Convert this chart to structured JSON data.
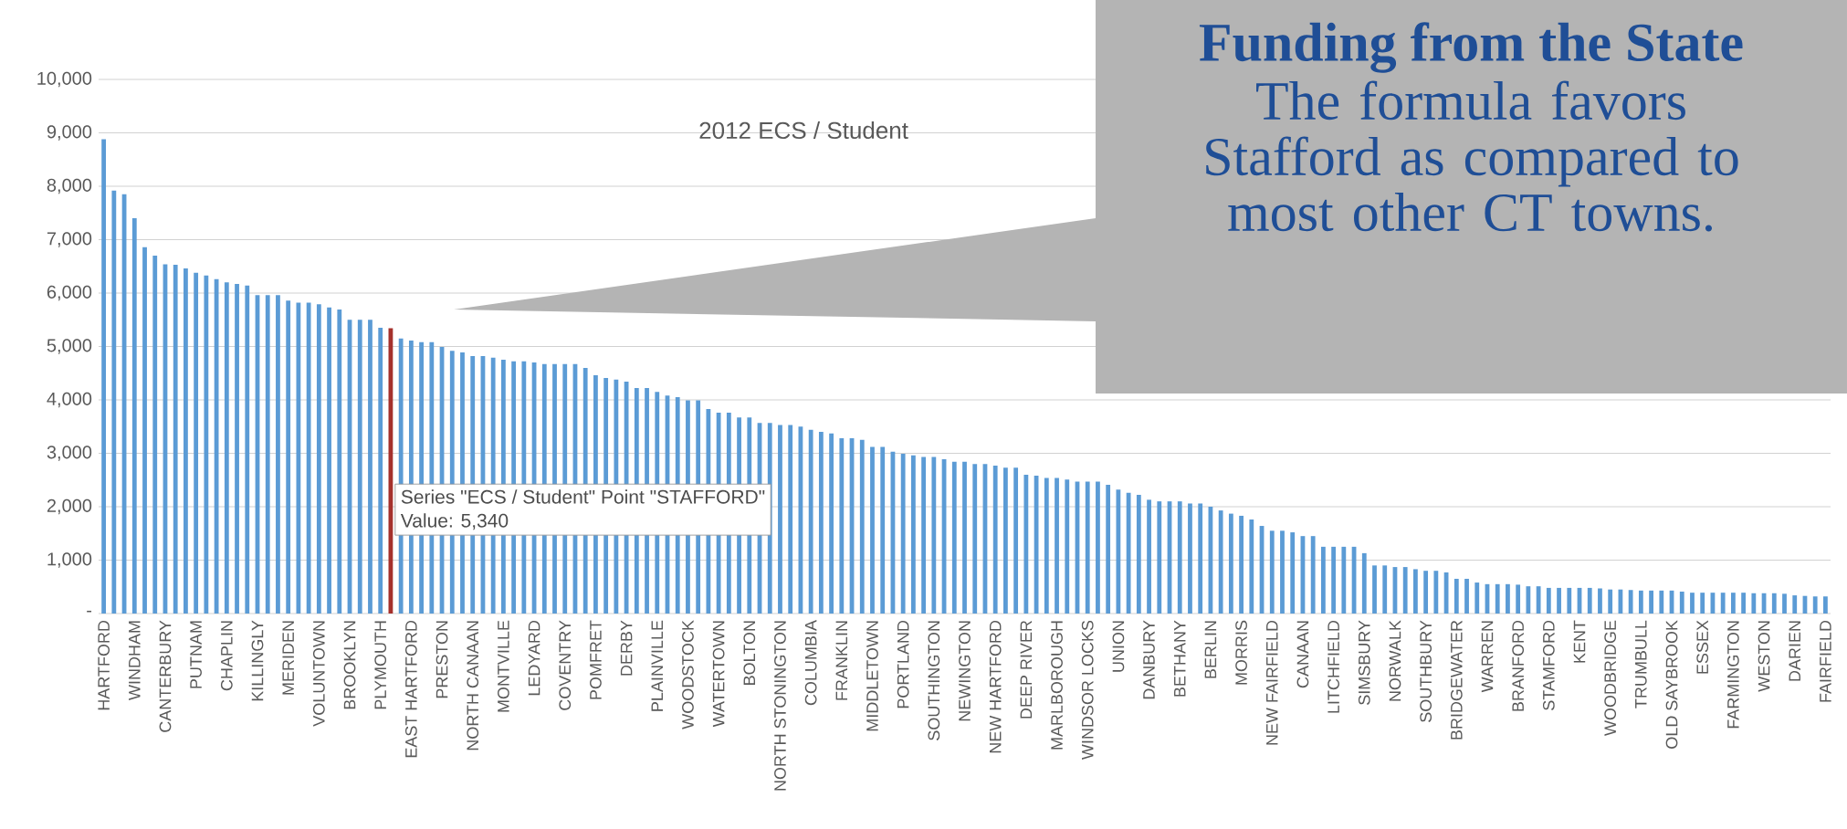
{
  "chart_data": {
    "type": "bar",
    "title": "2012 ECS / Student",
    "categories": [
      "HARTFORD",
      null,
      null,
      "WINDHAM",
      null,
      null,
      "CANTERBURY",
      null,
      null,
      "PUTNAM",
      null,
      null,
      "CHAPLIN",
      null,
      null,
      "KILLINGLY",
      null,
      null,
      "MERIDEN",
      null,
      null,
      "VOLUNTOWN",
      null,
      null,
      "BROOKLYN",
      null,
      null,
      "PLYMOUTH",
      null,
      null,
      "EAST HARTFORD",
      null,
      null,
      "PRESTON",
      null,
      null,
      "NORTH CANAAN",
      null,
      null,
      "MONTVILLE",
      null,
      null,
      "LEDYARD",
      null,
      null,
      "COVENTRY",
      null,
      null,
      "POMFRET",
      null,
      null,
      "DERBY",
      null,
      null,
      "PLAINVILLE",
      null,
      null,
      "WOODSTOCK",
      null,
      null,
      "WATERTOWN",
      null,
      null,
      "BOLTON",
      null,
      null,
      "NORTH STONINGTON",
      null,
      null,
      "COLUMBIA",
      null,
      null,
      "FRANKLIN",
      null,
      null,
      "MIDDLETOWN",
      null,
      null,
      "PORTLAND",
      null,
      null,
      "SOUTHINGTON",
      null,
      null,
      "NEWINGTON",
      null,
      null,
      "NEW HARTFORD",
      null,
      null,
      "DEEP RIVER",
      null,
      null,
      "MARLBOROUGH",
      null,
      null,
      "WINDSOR LOCKS",
      null,
      null,
      "UNION",
      null,
      null,
      "DANBURY",
      null,
      null,
      "BETHANY",
      null,
      null,
      "BERLIN",
      null,
      null,
      "MORRIS",
      null,
      null,
      "NEW FAIRFIELD",
      null,
      null,
      "CANAAN",
      null,
      null,
      "LITCHFIELD",
      null,
      null,
      "SIMSBURY",
      null,
      null,
      "NORWALK",
      null,
      null,
      "SOUTHBURY",
      null,
      null,
      "BRIDGEWATER",
      null,
      null,
      "WARREN",
      null,
      null,
      "BRANFORD",
      null,
      null,
      "STAMFORD",
      null,
      null,
      "KENT",
      null,
      null,
      "WOODBRIDGE",
      null,
      null,
      "TRUMBULL",
      null,
      null,
      "OLD SAYBROOK",
      null,
      null,
      "ESSEX",
      null,
      null,
      "FARMINGTON",
      null,
      null,
      "WESTON",
      null,
      null,
      "DARIEN",
      null,
      null,
      "FAIRFIELD"
    ],
    "values": [
      8880,
      7920,
      7850,
      7400,
      6860,
      6700,
      6540,
      6530,
      6460,
      6380,
      6330,
      6260,
      6200,
      6170,
      6140,
      5960,
      5960,
      5960,
      5860,
      5820,
      5820,
      5790,
      5730,
      5690,
      5500,
      5500,
      5500,
      5350,
      5340,
      5150,
      5110,
      5080,
      5080,
      4990,
      4920,
      4890,
      4820,
      4820,
      4790,
      4750,
      4720,
      4720,
      4700,
      4670,
      4670,
      4670,
      4670,
      4600,
      4460,
      4410,
      4380,
      4340,
      4220,
      4220,
      4150,
      4080,
      4050,
      3990,
      3990,
      3830,
      3760,
      3760,
      3670,
      3670,
      3570,
      3570,
      3530,
      3530,
      3500,
      3440,
      3400,
      3370,
      3280,
      3280,
      3250,
      3120,
      3120,
      3030,
      2990,
      2960,
      2930,
      2930,
      2890,
      2840,
      2840,
      2800,
      2800,
      2770,
      2730,
      2730,
      2600,
      2580,
      2540,
      2540,
      2510,
      2470,
      2470,
      2470,
      2410,
      2320,
      2260,
      2220,
      2130,
      2100,
      2100,
      2100,
      2060,
      2060,
      2000,
      1930,
      1870,
      1830,
      1760,
      1640,
      1550,
      1550,
      1520,
      1450,
      1450,
      1250,
      1250,
      1250,
      1250,
      1130,
      900,
      900,
      870,
      870,
      830,
      800,
      800,
      770,
      650,
      650,
      580,
      550,
      550,
      550,
      540,
      510,
      510,
      480,
      480,
      480,
      480,
      480,
      470,
      450,
      450,
      440,
      430,
      430,
      430,
      430,
      410,
      390,
      390,
      390,
      390,
      390,
      390,
      380,
      380,
      380,
      370,
      340,
      330,
      320,
      320
    ],
    "colors": [
      "#5b9bd5",
      "#5b9bd5",
      "#5b9bd5",
      "#5b9bd5",
      "#5b9bd5",
      "#5b9bd5",
      "#5b9bd5",
      "#5b9bd5",
      "#5b9bd5",
      "#5b9bd5",
      "#5b9bd5",
      "#5b9bd5",
      "#5b9bd5",
      "#5b9bd5",
      "#5b9bd5",
      "#5b9bd5",
      "#5b9bd5",
      "#5b9bd5",
      "#5b9bd5",
      "#5b9bd5",
      "#5b9bd5",
      "#5b9bd5",
      "#5b9bd5",
      "#5b9bd5",
      "#5b9bd5",
      "#5b9bd5",
      "#5b9bd5",
      "#5b9bd5",
      "#a5312c",
      "#5b9bd5",
      "#5b9bd5",
      "#5b9bd5",
      "#5b9bd5",
      "#5b9bd5",
      "#5b9bd5",
      "#5b9bd5",
      "#5b9bd5",
      "#5b9bd5",
      "#5b9bd5",
      "#5b9bd5",
      "#5b9bd5",
      "#5b9bd5",
      "#5b9bd5",
      "#5b9bd5",
      "#5b9bd5",
      "#5b9bd5",
      "#5b9bd5",
      "#5b9bd5",
      "#5b9bd5",
      "#5b9bd5",
      "#5b9bd5",
      "#5b9bd5",
      "#5b9bd5",
      "#5b9bd5",
      "#5b9bd5",
      "#5b9bd5",
      "#5b9bd5",
      "#5b9bd5",
      "#5b9bd5",
      "#5b9bd5",
      "#5b9bd5",
      "#5b9bd5",
      "#5b9bd5",
      "#5b9bd5",
      "#5b9bd5",
      "#5b9bd5",
      "#5b9bd5",
      "#5b9bd5",
      "#5b9bd5",
      "#5b9bd5",
      "#5b9bd5",
      "#5b9bd5",
      "#5b9bd5",
      "#5b9bd5",
      "#5b9bd5",
      "#5b9bd5",
      "#5b9bd5",
      "#5b9bd5",
      "#5b9bd5",
      "#5b9bd5",
      "#5b9bd5",
      "#5b9bd5",
      "#5b9bd5",
      "#5b9bd5",
      "#5b9bd5",
      "#5b9bd5",
      "#5b9bd5",
      "#5b9bd5",
      "#5b9bd5",
      "#5b9bd5",
      "#5b9bd5",
      "#5b9bd5",
      "#5b9bd5",
      "#5b9bd5",
      "#5b9bd5",
      "#5b9bd5",
      "#5b9bd5",
      "#5b9bd5",
      "#5b9bd5",
      "#5b9bd5",
      "#5b9bd5",
      "#5b9bd5",
      "#5b9bd5",
      "#5b9bd5",
      "#5b9bd5",
      "#5b9bd5",
      "#5b9bd5",
      "#5b9bd5",
      "#5b9bd5",
      "#5b9bd5",
      "#5b9bd5",
      "#5b9bd5",
      "#5b9bd5",
      "#5b9bd5",
      "#5b9bd5",
      "#5b9bd5",
      "#5b9bd5",
      "#5b9bd5",
      "#5b9bd5",
      "#5b9bd5",
      "#5b9bd5",
      "#5b9bd5",
      "#5b9bd5",
      "#5b9bd5",
      "#5b9bd5",
      "#5b9bd5",
      "#5b9bd5",
      "#5b9bd5",
      "#5b9bd5",
      "#5b9bd5",
      "#5b9bd5",
      "#5b9bd5",
      "#5b9bd5",
      "#5b9bd5",
      "#5b9bd5",
      "#5b9bd5",
      "#5b9bd5",
      "#5b9bd5",
      "#5b9bd5",
      "#5b9bd5",
      "#5b9bd5",
      "#5b9bd5",
      "#5b9bd5",
      "#5b9bd5",
      "#5b9bd5",
      "#5b9bd5",
      "#5b9bd5",
      "#5b9bd5",
      "#5b9bd5",
      "#5b9bd5",
      "#5b9bd5",
      "#5b9bd5",
      "#5b9bd5",
      "#5b9bd5",
      "#5b9bd5",
      "#5b9bd5",
      "#5b9bd5",
      "#5b9bd5",
      "#5b9bd5",
      "#5b9bd5",
      "#5b9bd5",
      "#5b9bd5",
      "#5b9bd5",
      "#5b9bd5",
      "#5b9bd5",
      "#5b9bd5",
      "#5b9bd5",
      "#5b9bd5",
      "#5b9bd5"
    ],
    "ylim": [
      0,
      10000
    ],
    "yticks": [
      {
        "value": 0,
        "label": "-"
      },
      {
        "value": 1000,
        "label": "1,000"
      },
      {
        "value": 2000,
        "label": "2,000"
      },
      {
        "value": 3000,
        "label": "3,000"
      },
      {
        "value": 4000,
        "label": "4,000"
      },
      {
        "value": 5000,
        "label": "5,000"
      },
      {
        "value": 6000,
        "label": "6,000"
      },
      {
        "value": 7000,
        "label": "7,000"
      },
      {
        "value": 8000,
        "label": "8,000"
      },
      {
        "value": 9000,
        "label": "9,000"
      },
      {
        "value": 10000,
        "label": "10,000"
      }
    ],
    "grid": "y",
    "annotations": [
      "Series \"ECS / Student\" Point \"STAFFORD\"",
      "Value:  5,340",
      "Funding from the State",
      "The formula favors Stafford as compared to most other CT towns."
    ]
  }
}
